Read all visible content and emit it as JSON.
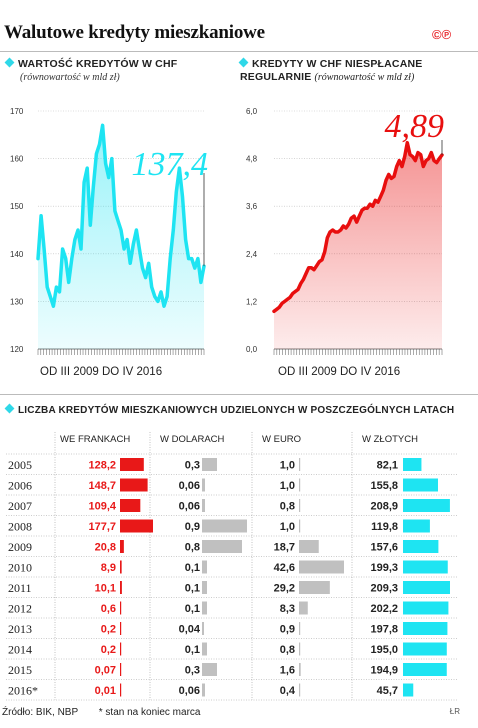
{
  "title": "Walutowe kredyty mieszkaniowe",
  "logo": "©℗",
  "charts": [
    {
      "title_main": "Wartość kredytów w CHF",
      "title_sub": "(równowartość w mld zł)",
      "period": "OD III 2009 DO IV 2016",
      "chart_data": {
        "type": "area",
        "color": "#1ee4f2",
        "ylim": [
          120,
          170
        ],
        "yticks": [
          120,
          130,
          140,
          150,
          160,
          170
        ],
        "highlight_value": "137,4",
        "values": [
          139,
          148,
          141,
          133,
          131,
          129,
          133,
          132,
          141,
          139,
          134,
          139,
          143,
          145,
          141,
          155,
          158,
          146,
          154,
          161,
          163,
          167,
          159,
          156,
          160,
          149,
          147,
          145,
          141,
          143,
          138,
          142,
          145,
          141,
          137,
          135,
          138,
          133,
          131,
          130,
          132,
          129,
          131,
          139,
          145,
          153,
          158,
          152,
          143,
          139,
          139,
          137,
          139,
          134,
          137.4
        ]
      }
    },
    {
      "title_main": "Kredyty w CHF niespłacane regularnie",
      "title_sub": "(równowartość w mld zł)",
      "period": "OD III 2009 DO IV 2016",
      "chart_data": {
        "type": "area",
        "color": "#e80f0f",
        "ylim": [
          0,
          6.0
        ],
        "yticks": [
          "0,0",
          "1,2",
          "2,4",
          "3,6",
          "4,8",
          "6,0"
        ],
        "yticks_num": [
          0,
          1.2,
          2.4,
          3.6,
          4.8,
          6.0
        ],
        "highlight_value": "4,89",
        "values": [
          0.95,
          1.0,
          1.05,
          1.15,
          1.2,
          1.25,
          1.3,
          1.4,
          1.45,
          1.5,
          1.65,
          1.75,
          1.9,
          2.05,
          2.05,
          2.0,
          2.1,
          2.2,
          2.25,
          2.45,
          2.8,
          2.95,
          3.0,
          2.95,
          2.95,
          3.0,
          3.1,
          3.05,
          3.15,
          3.3,
          3.35,
          3.2,
          3.35,
          3.5,
          3.55,
          3.55,
          3.65,
          3.6,
          3.75,
          3.7,
          3.85,
          4.0,
          4.25,
          4.4,
          4.3,
          4.35,
          4.6,
          4.75,
          4.6,
          4.85,
          5.2,
          4.9,
          4.85,
          4.75,
          4.95,
          4.9,
          4.6,
          4.75,
          4.8,
          4.95,
          4.75,
          4.7,
          4.8,
          4.89
        ]
      }
    }
  ],
  "table": {
    "title": "Liczba kredytów mieszkaniowych udzielonych w poszczególnych latach",
    "columns": [
      "WE FRANKACH",
      "W DOLARACH",
      "W EURO",
      "W ZŁOTYCH"
    ],
    "column_colors": [
      "#e81818",
      "#c0c0c0",
      "#c0c0c0",
      "#1ee4f2"
    ],
    "years": [
      "2005",
      "2006",
      "2007",
      "2008",
      "2009",
      "2010",
      "2011",
      "2012",
      "2013",
      "2014",
      "2015",
      "2016*"
    ],
    "chart_data": {
      "type": "table",
      "series": [
        {
          "name": "WE FRANKACH",
          "labels": [
            "128,2",
            "148,7",
            "109,4",
            "177,7",
            "20,8",
            "8,9",
            "10,1",
            "0,6",
            "0,2",
            "0,2",
            "0,07",
            "0,01"
          ],
          "values": [
            128.2,
            148.7,
            109.4,
            177.7,
            20.8,
            8.9,
            10.1,
            0.6,
            0.2,
            0.2,
            0.07,
            0.01
          ]
        },
        {
          "name": "W DOLARACH",
          "labels": [
            "0,3",
            "0,06",
            "0,06",
            "0,9",
            "0,8",
            "0,1",
            "0,1",
            "0,1",
            "0,04",
            "0,1",
            "0,3",
            "0,06"
          ],
          "values": [
            0.3,
            0.06,
            0.06,
            0.9,
            0.8,
            0.1,
            0.1,
            0.1,
            0.04,
            0.1,
            0.3,
            0.06
          ]
        },
        {
          "name": "W EURO",
          "labels": [
            "1,0",
            "1,0",
            "0,8",
            "1,0",
            "18,7",
            "42,6",
            "29,2",
            "8,3",
            "0,9",
            "0,8",
            "1,6",
            "0,4"
          ],
          "values": [
            1.0,
            1.0,
            0.8,
            1.0,
            18.7,
            42.6,
            29.2,
            8.3,
            0.9,
            0.8,
            1.6,
            0.4
          ]
        },
        {
          "name": "W ZŁOTYCH",
          "labels": [
            "82,1",
            "155,8",
            "208,9",
            "119,8",
            "157,6",
            "199,3",
            "209,3",
            "202,2",
            "197,8",
            "195,0",
            "194,9",
            "45,7"
          ],
          "values": [
            82.1,
            155.8,
            208.9,
            119.8,
            157.6,
            199.3,
            209.3,
            202.2,
            197.8,
            195.0,
            194.9,
            45.7
          ]
        }
      ]
    }
  },
  "footer": {
    "source": "Źródło: BIK, NBP",
    "note": "* stan na koniec marca",
    "credit": "ŁR"
  }
}
